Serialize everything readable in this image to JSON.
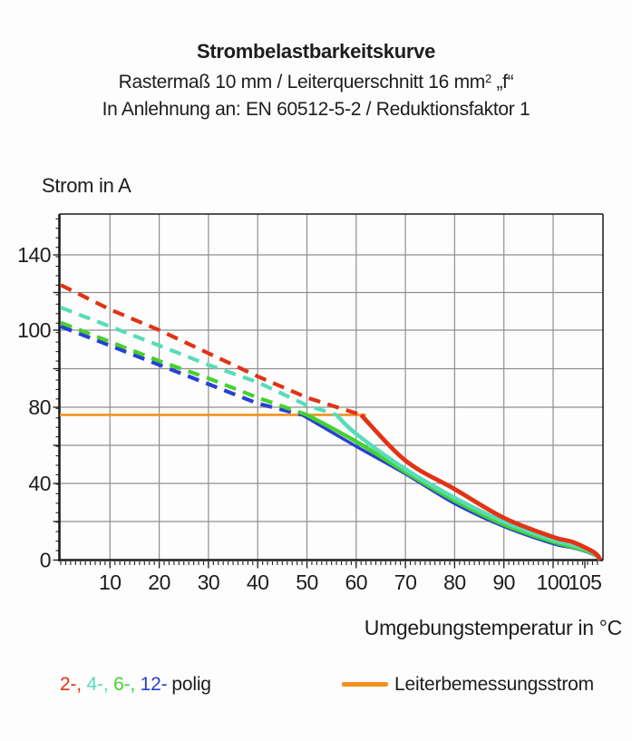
{
  "title": {
    "line1": "Strombelastbarkeitskurve",
    "line2_main": "Rastermaß 10 mm / Leiterquerschnitt 16 mm",
    "line2_sup": "2",
    "line2_tail": " „f“",
    "line3": "In Anlehnung an: EN 60512-5-2 / Reduktionsfaktor 1"
  },
  "legend": {
    "poles_suffix": "polig",
    "separator": ",",
    "rated_label": "Leiterbemessungsstrom"
  },
  "chart_data": {
    "type": "line",
    "title": "Strombelastbarkeitskurve",
    "ylabel": "Strom in A",
    "xlabel": "Umgebungstemperatur in °C",
    "x_tick_labels": [
      "10",
      "20",
      "30",
      "40",
      "50",
      "60",
      "70",
      "80",
      "90",
      "100",
      "105"
    ],
    "x_tick_values": [
      10,
      20,
      30,
      40,
      50,
      60,
      70,
      80,
      90,
      100,
      105
    ],
    "y_tick_labels": [
      "140",
      "100",
      "80",
      "40",
      "0"
    ],
    "y_tick_values": [
      140,
      100,
      80,
      40,
      0
    ],
    "x_range": [
      0,
      105
    ],
    "y_range": [
      0,
      160
    ],
    "grid": true,
    "legend_position": "bottom",
    "colors": {
      "grid": "#8f8f8f",
      "axis": "#1d1d1b",
      "rated": "#f2921d"
    },
    "rated_current": {
      "label": "Leiterbemessungsstrom",
      "value_A": 76,
      "x_end_temp": 62,
      "color": "#f2921d"
    },
    "series": [
      {
        "name": "2-polig",
        "legend_label": "2-",
        "color": "#e23315",
        "dashed_above_rated": true,
        "transition_temp": 61,
        "points": [
          [
            0,
            124
          ],
          [
            10,
            111
          ],
          [
            20,
            100
          ],
          [
            30,
            94
          ],
          [
            40,
            88
          ],
          [
            50,
            82.5
          ],
          [
            61,
            76
          ],
          [
            70,
            52
          ],
          [
            80,
            37
          ],
          [
            90,
            22
          ],
          [
            100,
            12
          ],
          [
            102,
            9.5
          ],
          [
            104,
            5
          ],
          [
            104.7,
            2.5
          ],
          [
            105,
            0
          ]
        ]
      },
      {
        "name": "4-polig",
        "legend_label": "4-",
        "color": "#58dcb8",
        "dashed_above_rated": true,
        "transition_temp": 56,
        "points": [
          [
            0,
            112
          ],
          [
            10,
            102
          ],
          [
            20,
            96
          ],
          [
            30,
            91
          ],
          [
            40,
            86.5
          ],
          [
            50,
            80.5
          ],
          [
            56,
            76
          ],
          [
            60,
            66
          ],
          [
            70,
            47.5
          ],
          [
            80,
            32.5
          ],
          [
            90,
            20
          ],
          [
            100,
            10.5
          ],
          [
            102,
            8
          ],
          [
            104,
            4.5
          ],
          [
            104.7,
            2
          ],
          [
            105,
            0
          ]
        ]
      },
      {
        "name": "6-polig",
        "legend_label": "6-",
        "color": "#46d12f",
        "dashed_above_rated": true,
        "transition_temp": 50,
        "points": [
          [
            0,
            104
          ],
          [
            10,
            97
          ],
          [
            20,
            92
          ],
          [
            30,
            87.5
          ],
          [
            40,
            82.5
          ],
          [
            50,
            76
          ],
          [
            60,
            62
          ],
          [
            70,
            46
          ],
          [
            80,
            31
          ],
          [
            90,
            18.5
          ],
          [
            100,
            9.5
          ],
          [
            102,
            7
          ],
          [
            104,
            4
          ],
          [
            104.7,
            1.8
          ],
          [
            105,
            0
          ]
        ]
      },
      {
        "name": "12-polig",
        "legend_label": "12-",
        "color": "#2840d4",
        "dashed_above_rated": true,
        "transition_temp": 49,
        "points": [
          [
            0,
            102
          ],
          [
            10,
            96
          ],
          [
            20,
            91
          ],
          [
            30,
            86
          ],
          [
            40,
            81
          ],
          [
            49,
            76
          ],
          [
            60,
            59.5
          ],
          [
            70,
            45
          ],
          [
            80,
            29.5
          ],
          [
            90,
            17.5
          ],
          [
            100,
            8.5
          ],
          [
            102,
            6.5
          ],
          [
            104,
            3.5
          ],
          [
            104.7,
            1.5
          ],
          [
            105,
            0
          ]
        ]
      }
    ]
  }
}
